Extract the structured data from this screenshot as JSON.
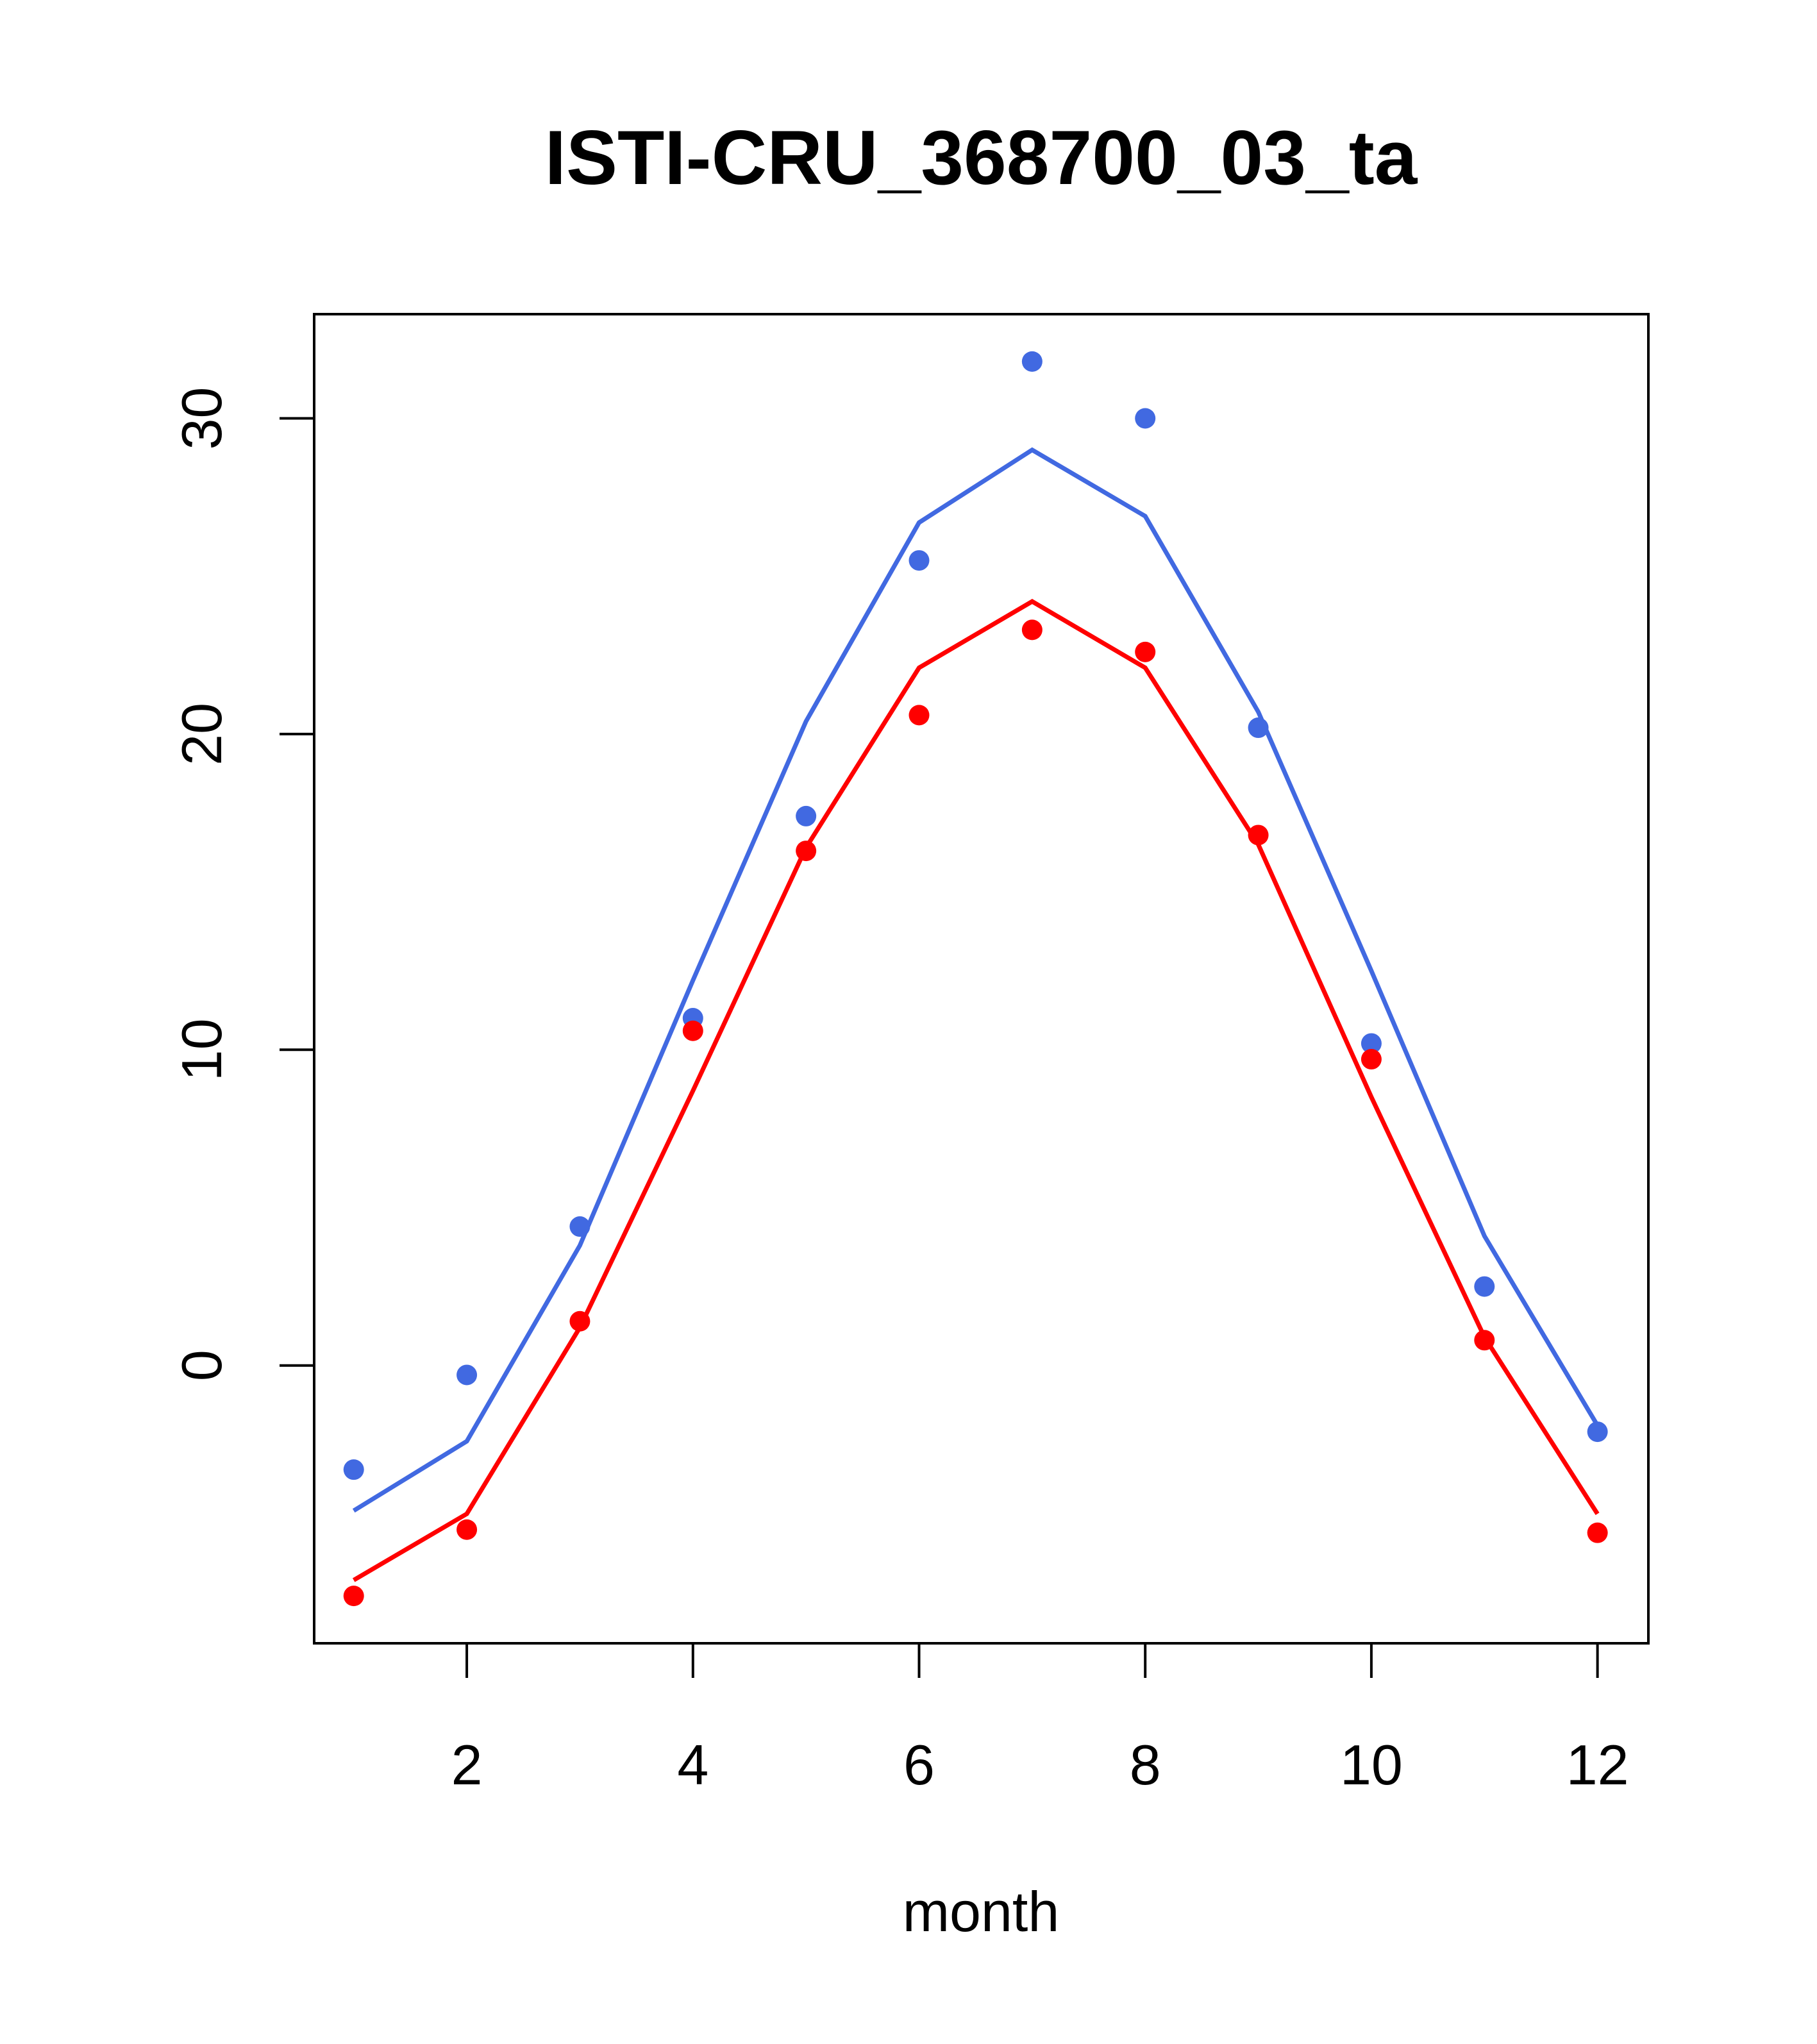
{
  "chart_data": {
    "type": "line",
    "title": "ISTI-CRU_368700_03_ta",
    "xlabel": "month",
    "ylabel": "",
    "xlim": [
      0.65,
      12.45
    ],
    "ylim": [
      -8.8,
      33.3
    ],
    "xticks": [
      2,
      4,
      6,
      8,
      10,
      12
    ],
    "yticks": [
      0,
      10,
      20,
      30
    ],
    "grid": false,
    "legend": "none",
    "x": [
      1,
      2,
      3,
      4,
      5,
      6,
      7,
      8,
      9,
      10,
      11,
      12
    ],
    "series": [
      {
        "color": "#4169E1",
        "line": [
          -4.6,
          -2.4,
          3.8,
          12.2,
          20.4,
          26.7,
          29.0,
          26.9,
          20.7,
          12.5,
          4.1,
          -1.9
        ],
        "points": [
          -3.3,
          -0.3,
          4.4,
          11.0,
          17.4,
          25.5,
          31.8,
          30.0,
          20.2,
          10.2,
          2.5,
          -2.1
        ]
      },
      {
        "color": "#FF0000",
        "line": [
          -6.8,
          -4.7,
          1.2,
          8.7,
          16.4,
          22.1,
          24.2,
          22.1,
          16.5,
          8.5,
          0.9,
          -4.7
        ],
        "points": [
          -7.3,
          -5.2,
          1.4,
          10.6,
          16.3,
          20.6,
          23.3,
          22.6,
          16.8,
          9.7,
          0.8,
          -5.3
        ]
      }
    ]
  }
}
